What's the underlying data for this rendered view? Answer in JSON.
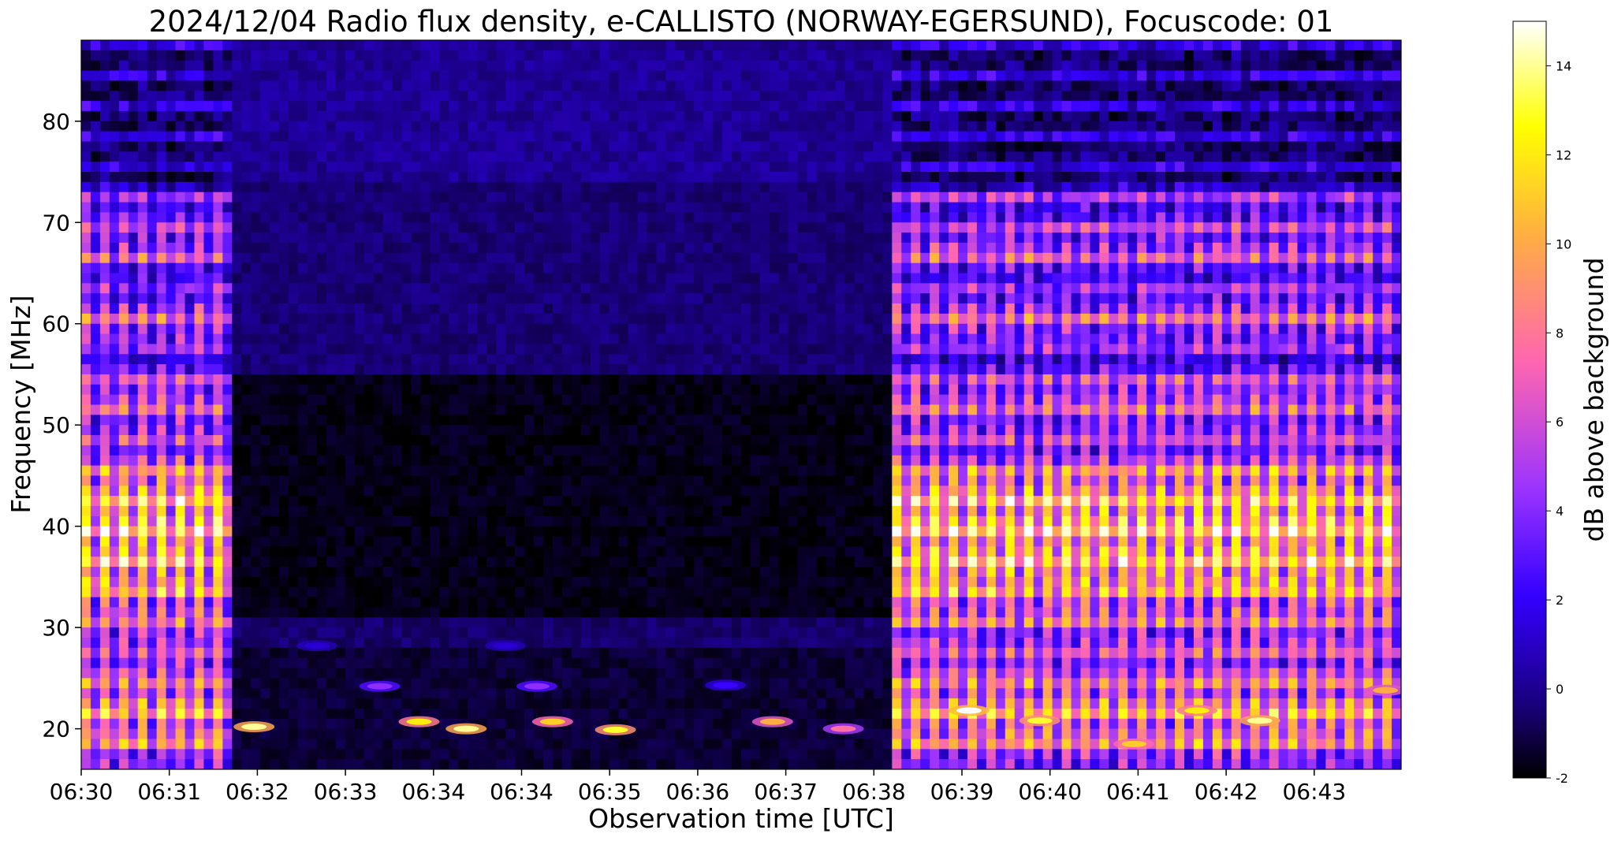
{
  "chart_data": {
    "type": "heatmap",
    "title": "2024/12/04  Radio flux density, e-CALLISTO (NORWAY-EGERSUND), Focuscode: 01",
    "xlabel": "Observation time [UTC]",
    "ylabel": "Frequency [MHz]",
    "x_tick_labels": [
      "06:30",
      "06:31",
      "06:32",
      "06:33",
      "06:34",
      "06:34",
      "06:35",
      "06:36",
      "06:37",
      "06:38",
      "06:39",
      "06:40",
      "06:41",
      "06:42",
      "06:43"
    ],
    "y_ticks": [
      20,
      30,
      40,
      50,
      60,
      70,
      80
    ],
    "ylim": [
      16,
      88
    ],
    "colorbar": {
      "label": "dB above background",
      "ticks": [
        -2,
        0,
        2,
        4,
        6,
        8,
        10,
        12,
        14
      ],
      "range": [
        -2,
        15
      ],
      "colormap": "gnuplot2"
    },
    "colormap_stops": [
      "#000000",
      "#1a0080",
      "#3300ff",
      "#9a33ff",
      "#ff66b0",
      "#ffb040",
      "#ffff00",
      "#ffffff"
    ],
    "segments": [
      {
        "from": "06:30",
        "to": "06:31:36",
        "state": "active"
      },
      {
        "from": "06:31:36",
        "to": "06:38:36",
        "state": "quiet"
      },
      {
        "from": "06:38:36",
        "to": "06:44",
        "state": "active"
      }
    ],
    "frequency_band_profile_db": [
      {
        "mhz": 16,
        "db": 5
      },
      {
        "mhz": 18,
        "db": 9
      },
      {
        "mhz": 20,
        "db": 10
      },
      {
        "mhz": 22,
        "db": 11
      },
      {
        "mhz": 24,
        "db": 9
      },
      {
        "mhz": 26,
        "db": 8
      },
      {
        "mhz": 28,
        "db": 7
      },
      {
        "mhz": 30,
        "db": 8
      },
      {
        "mhz": 32,
        "db": 9
      },
      {
        "mhz": 35,
        "db": 12
      },
      {
        "mhz": 38,
        "db": 12
      },
      {
        "mhz": 40,
        "db": 13
      },
      {
        "mhz": 43,
        "db": 12
      },
      {
        "mhz": 45,
        "db": 10
      },
      {
        "mhz": 48,
        "db": 6
      },
      {
        "mhz": 50,
        "db": 7
      },
      {
        "mhz": 53,
        "db": 8
      },
      {
        "mhz": 55,
        "db": 6
      },
      {
        "mhz": 57,
        "db": 4
      },
      {
        "mhz": 59,
        "db": 7
      },
      {
        "mhz": 61,
        "db": 8
      },
      {
        "mhz": 64,
        "db": 4
      },
      {
        "mhz": 67,
        "db": 8
      },
      {
        "mhz": 69,
        "db": 6
      },
      {
        "mhz": 71,
        "db": 5
      },
      {
        "mhz": 73,
        "db": 5
      },
      {
        "mhz": 74,
        "db": 1
      },
      {
        "mhz": 88,
        "db": 1
      }
    ],
    "bursts": [
      {
        "time": "06:31:50",
        "mhz": 20.2,
        "db": 14
      },
      {
        "time": "06:33:35",
        "mhz": 20.7,
        "db": 12
      },
      {
        "time": "06:34:05",
        "mhz": 20.0,
        "db": 14
      },
      {
        "time": "06:35:00",
        "mhz": 20.7,
        "db": 11
      },
      {
        "time": "06:35:40",
        "mhz": 19.9,
        "db": 13
      },
      {
        "time": "06:37:20",
        "mhz": 20.7,
        "db": 10
      },
      {
        "time": "06:38:05",
        "mhz": 20.0,
        "db": 8
      },
      {
        "time": "06:33:10",
        "mhz": 24.2,
        "db": 5
      },
      {
        "time": "06:34:50",
        "mhz": 24.2,
        "db": 5
      },
      {
        "time": "06:36:50",
        "mhz": 24.3,
        "db": 3
      },
      {
        "time": "06:32:30",
        "mhz": 28.2,
        "db": 2
      },
      {
        "time": "06:34:30",
        "mhz": 28.2,
        "db": 2
      },
      {
        "time": "06:39:25",
        "mhz": 21.8,
        "db": 15
      },
      {
        "time": "06:40:10",
        "mhz": 20.8,
        "db": 13
      },
      {
        "time": "06:41:10",
        "mhz": 18.5,
        "db": 11
      },
      {
        "time": "06:41:50",
        "mhz": 21.8,
        "db": 12
      },
      {
        "time": "06:42:30",
        "mhz": 20.8,
        "db": 14
      },
      {
        "time": "06:43:50",
        "mhz": 23.8,
        "db": 10
      }
    ]
  }
}
